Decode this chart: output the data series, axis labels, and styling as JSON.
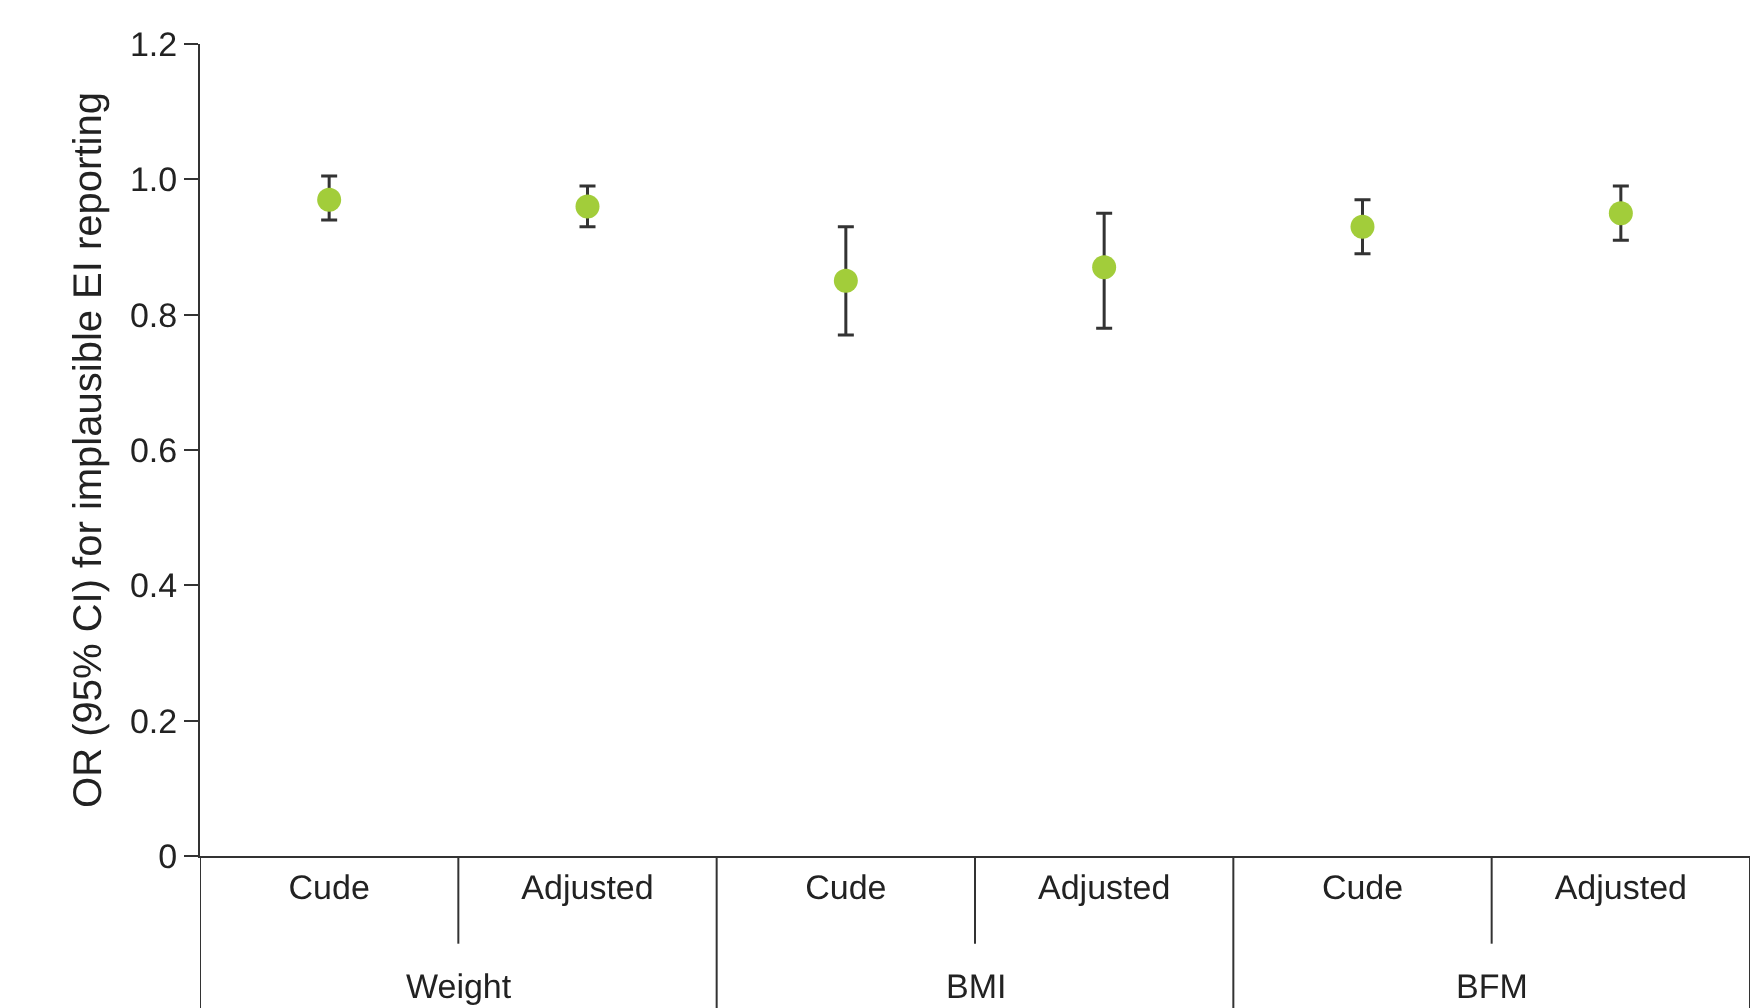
{
  "chart_data": {
    "type": "scatter",
    "ylabel": "OR (95% CI) for implausible EI reporting",
    "categories": [
      "Cude",
      "Adjusted",
      "Cude",
      "Adjusted",
      "Cude",
      "Adjusted"
    ],
    "series": [
      {
        "color": "#a2cd3a",
        "values": [
          0.97,
          0.96,
          0.85,
          0.87,
          0.93,
          0.95
        ],
        "errors": [
          [
            0.94,
            1.005
          ],
          [
            0.93,
            0.99
          ],
          [
            0.77,
            0.93
          ],
          [
            0.78,
            0.95
          ],
          [
            0.89,
            0.97
          ],
          [
            0.91,
            0.99
          ]
        ]
      }
    ],
    "annotations": [
      "Weight",
      "BMI",
      "BFM"
    ],
    "ylim": [
      0,
      1.2
    ],
    "yticks": [
      0,
      0.2,
      0.4,
      0.6,
      0.8,
      {
        "value": 1,
        "label": "1.0"
      },
      1.2
    ],
    "marker": "circle"
  }
}
